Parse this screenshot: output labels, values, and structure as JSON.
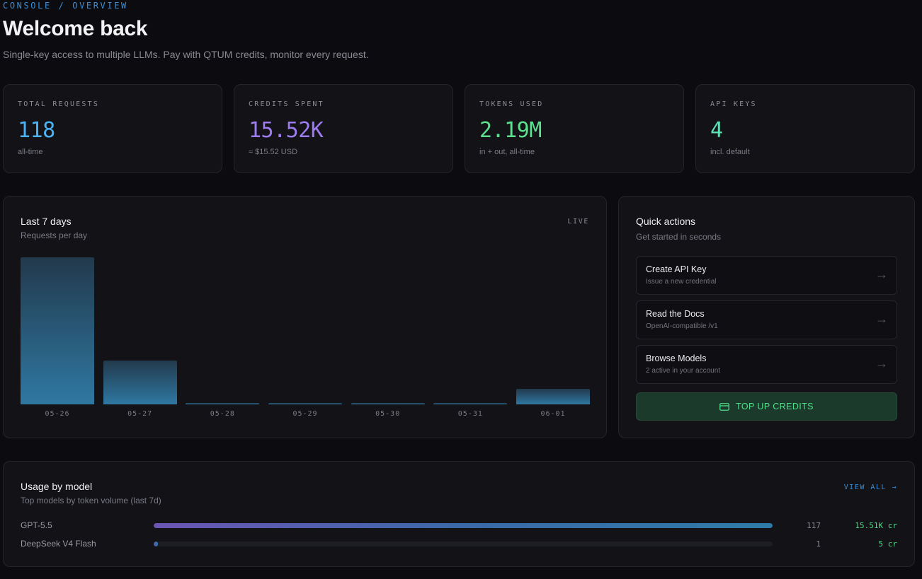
{
  "header": {
    "breadcrumb": "CONSOLE / OVERVIEW",
    "title": "Welcome back",
    "subtitle": "Single-key access to multiple LLMs. Pay with QTUM credits, monitor every request."
  },
  "stats": [
    {
      "label": "TOTAL REQUESTS",
      "value": "118",
      "note": "all-time",
      "color": "#4ab3f5"
    },
    {
      "label": "CREDITS SPENT",
      "value": "15.52K",
      "note": "≈ $15.52 USD",
      "color": "#9d7cf0"
    },
    {
      "label": "TOKENS USED",
      "value": "2.19M",
      "note": "in + out, all-time",
      "color": "#5be08e"
    },
    {
      "label": "API KEYS",
      "value": "4",
      "note": "incl. default",
      "color": "#5fe0b4"
    }
  ],
  "chart_card": {
    "title": "Last 7 days",
    "subtitle": "Requests per day",
    "badge": "LIVE"
  },
  "chart_data": {
    "type": "bar",
    "categories": [
      "05-26",
      "05-27",
      "05-28",
      "05-29",
      "05-30",
      "05-31",
      "06-01"
    ],
    "values": [
      84,
      25,
      0,
      0,
      0,
      0,
      9
    ],
    "ylim": [
      0,
      84
    ],
    "grid": false
  },
  "quick_actions": {
    "title": "Quick actions",
    "subtitle": "Get started in seconds",
    "items": [
      {
        "title": "Create API Key",
        "desc": "Issue a new credential"
      },
      {
        "title": "Read the Docs",
        "desc": "OpenAI-compatible /v1"
      },
      {
        "title": "Browse Models",
        "desc": "2 active in your account"
      }
    ],
    "topup_label": "TOP UP CREDITS"
  },
  "usage": {
    "title": "Usage by model",
    "subtitle": "Top models by token volume (last 7d)",
    "view_all": "VIEW ALL →",
    "models": [
      {
        "name": "GPT-5.5",
        "count": "117",
        "credits": "15.51K cr",
        "share": 1.0
      },
      {
        "name": "DeepSeek V4 Flash",
        "count": "1",
        "credits": "5 cr",
        "share": 0.0066
      }
    ]
  }
}
